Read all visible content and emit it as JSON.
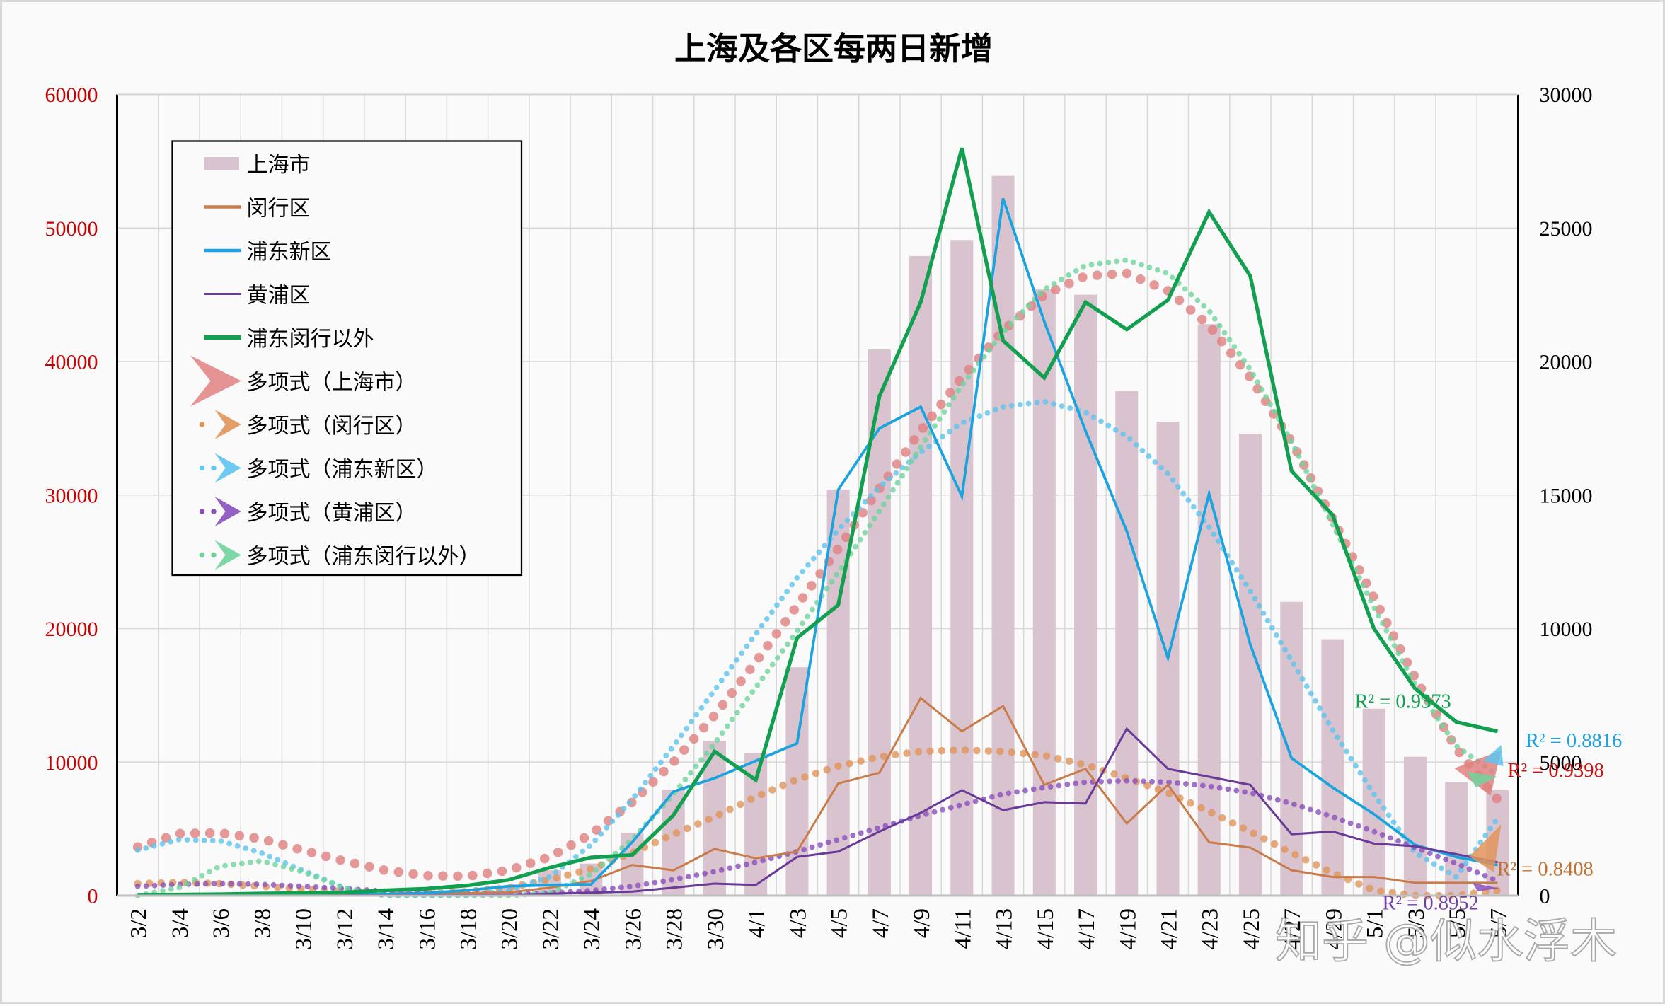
{
  "chart_data": {
    "type": "bar+line",
    "title": "上海及各区每两日新增",
    "categories": [
      "3/2",
      "3/4",
      "3/6",
      "3/8",
      "3/10",
      "3/12",
      "3/14",
      "3/16",
      "3/18",
      "3/20",
      "3/22",
      "3/24",
      "3/26",
      "3/28",
      "3/30",
      "4/1",
      "4/3",
      "4/5",
      "4/7",
      "4/9",
      "4/11",
      "4/13",
      "4/15",
      "4/17",
      "4/19",
      "4/21",
      "4/23",
      "4/25",
      "4/27",
      "4/29",
      "5/1",
      "5/3",
      "5/5",
      "5/7"
    ],
    "left_axis": {
      "min": 0,
      "max": 60000,
      "ticks": [
        0,
        10000,
        20000,
        30000,
        40000,
        50000,
        60000
      ],
      "color": "#cc0000"
    },
    "right_axis": {
      "min": 0,
      "max": 30000,
      "ticks": [
        0,
        5000,
        10000,
        15000,
        20000,
        25000,
        30000
      ],
      "color": "#000000"
    },
    "series": [
      {
        "name": "上海市",
        "type": "bar",
        "axis": "left",
        "color": "#d9c3cf",
        "values": [
          0,
          0,
          0,
          0,
          0,
          0,
          0,
          0,
          0,
          600,
          1900,
          2400,
          4700,
          7900,
          11600,
          10700,
          17100,
          30400,
          40900,
          47900,
          49100,
          53900,
          45400,
          45000,
          37800,
          35500,
          42800,
          34600,
          22000,
          19200,
          14000,
          10400,
          8500,
          7900
        ]
      },
      {
        "name": "闵行区",
        "type": "line",
        "axis": "right",
        "color": "#c97c4a",
        "width": 2,
        "values": [
          30,
          30,
          30,
          40,
          40,
          50,
          60,
          70,
          90,
          120,
          300,
          550,
          1150,
          950,
          1750,
          1400,
          1650,
          4200,
          4600,
          7400,
          6150,
          7100,
          4150,
          4750,
          2700,
          4150,
          2000,
          1800,
          950,
          700,
          700,
          480,
          480,
          480
        ]
      },
      {
        "name": "浦东新区",
        "type": "line",
        "axis": "right",
        "color": "#1aa3de",
        "width": 2.5,
        "values": [
          20,
          20,
          20,
          30,
          30,
          40,
          60,
          100,
          200,
          350,
          400,
          420,
          2000,
          3900,
          4400,
          5050,
          5700,
          15200,
          17500,
          18300,
          14950,
          26100,
          21500,
          17400,
          13650,
          8900,
          15050,
          9400,
          5150,
          4050,
          3050,
          1900,
          1450,
          1150
        ]
      },
      {
        "name": "黄浦区",
        "type": "line",
        "axis": "right",
        "color": "#6a3a99",
        "width": 2,
        "values": [
          10,
          10,
          10,
          10,
          10,
          10,
          10,
          15,
          20,
          40,
          70,
          110,
          150,
          300,
          450,
          400,
          1450,
          1650,
          2400,
          3100,
          3950,
          3200,
          3500,
          3450,
          6250,
          4750,
          4450,
          4150,
          2300,
          2400,
          1950,
          1850,
          1550,
          1250
        ]
      },
      {
        "name": "浦东闵行以外",
        "type": "line",
        "axis": "right",
        "color": "#12a050",
        "width": 3.5,
        "values": [
          30,
          40,
          50,
          80,
          100,
          120,
          200,
          260,
          380,
          590,
          1050,
          1430,
          1520,
          3010,
          5400,
          4330,
          9650,
          10880,
          18700,
          22220,
          27990,
          20780,
          19390,
          22220,
          21200,
          22300,
          25600,
          23200,
          15900,
          14250,
          10000,
          7750,
          6500,
          6150
        ]
      },
      {
        "name": "多项式（上海市）",
        "type": "trend-dots",
        "axis": "left",
        "color": "#e08080",
        "r2": "0.9398"
      },
      {
        "name": "多项式（闵行区）",
        "type": "trend-dots",
        "axis": "right",
        "color": "#e0955a",
        "r2": "0.8408"
      },
      {
        "name": "多项式（浦东新区）",
        "type": "trend-dots",
        "axis": "right",
        "color": "#5ec4ee",
        "r2": "0.8816"
      },
      {
        "name": "多项式（黄浦区）",
        "type": "trend-dots",
        "axis": "right",
        "color": "#8a4fbd",
        "r2": "0.8952"
      },
      {
        "name": "多项式（浦东闵行以外）",
        "type": "trend-dots",
        "axis": "right",
        "color": "#6fd49c",
        "r2": "0.9373"
      }
    ],
    "trendlines": {
      "上海市": [
        3650,
        4650,
        4700,
        4250,
        3400,
        2600,
        1900,
        1500,
        1450,
        1900,
        2900,
        4600,
        7000,
        10000,
        13500,
        17500,
        21700,
        26000,
        30500,
        34800,
        38800,
        42300,
        45000,
        46400,
        46600,
        45300,
        42700,
        38800,
        34000,
        28200,
        22300,
        16300,
        11000,
        7200
      ],
      "闵行区": [
        450,
        500,
        450,
        350,
        250,
        150,
        80,
        100,
        150,
        300,
        600,
        1000,
        1600,
        2300,
        2950,
        3700,
        4350,
        4850,
        5200,
        5400,
        5450,
        5400,
        5250,
        4900,
        4400,
        3850,
        3150,
        2400,
        1600,
        850,
        200,
        -200,
        -300,
        200
      ],
      "浦东新区": [
        1700,
        2100,
        2050,
        1600,
        950,
        300,
        0,
        0,
        0,
        200,
        700,
        1900,
        3600,
        5600,
        7700,
        9800,
        11900,
        13700,
        15300,
        16600,
        17700,
        18300,
        18500,
        18100,
        17200,
        15800,
        13800,
        11400,
        8800,
        6200,
        3800,
        1600,
        700,
        2900
      ],
      "黄浦区": [
        350,
        420,
        450,
        420,
        350,
        260,
        170,
        100,
        60,
        60,
        100,
        190,
        350,
        600,
        900,
        1250,
        1650,
        2100,
        2550,
        3000,
        3400,
        3800,
        4050,
        4250,
        4300,
        4250,
        4100,
        3850,
        3450,
        2950,
        2400,
        1800,
        1200,
        550
      ],
      "浦东闵行以外": [
        0,
        300,
        1100,
        1300,
        900,
        300,
        0,
        0,
        0,
        0,
        100,
        800,
        2100,
        3800,
        5700,
        7800,
        9900,
        12100,
        14400,
        16800,
        19100,
        21100,
        22700,
        23600,
        23800,
        23300,
        21900,
        19700,
        17000,
        13900,
        10800,
        7900,
        5600,
        4500
      ]
    },
    "r2_labels": [
      {
        "series": "浦东闵行以外",
        "text": "R² = 0.9373",
        "color": "#12a050"
      },
      {
        "series": "浦东新区",
        "text": "R² = 0.8816",
        "color": "#1aa3de"
      },
      {
        "series": "上海市",
        "text": "R² = 0.9398",
        "color": "#d01010"
      },
      {
        "series": "闵行区",
        "text": "R² = 0.8408",
        "color": "#c07030"
      },
      {
        "series": "黄浦区",
        "text": "R² = 0.8952",
        "color": "#7040a8"
      }
    ],
    "legend": {
      "position": "upper-left-inside"
    },
    "grid": true
  },
  "legend": {
    "items": [
      {
        "label": "上海市"
      },
      {
        "label": "闵行区"
      },
      {
        "label": "浦东新区"
      },
      {
        "label": "黄浦区"
      },
      {
        "label": "浦东闵行以外"
      },
      {
        "label": "多项式（上海市）"
      },
      {
        "label": "多项式（闵行区）"
      },
      {
        "label": "多项式（浦东新区）"
      },
      {
        "label": "多项式（黄浦区）"
      },
      {
        "label": "多项式（浦东闵行以外）"
      }
    ]
  },
  "watermark": "知乎 @似水浮木"
}
